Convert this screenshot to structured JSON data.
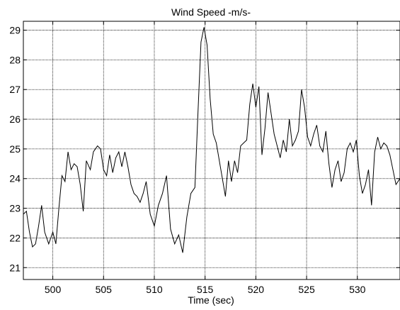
{
  "chart_data": {
    "type": "line",
    "title": "Wind Speed -m/s-",
    "xlabel": "Time (sec)",
    "ylabel": "",
    "xlim": [
      497.1,
      534.2
    ],
    "ylim": [
      20.6,
      29.3
    ],
    "xticks": [
      500,
      505,
      510,
      515,
      520,
      525,
      530
    ],
    "yticks": [
      21,
      22,
      23,
      24,
      25,
      26,
      27,
      28,
      29
    ],
    "grid": true,
    "legend": "none",
    "colors": {
      "line": "#000000",
      "grid": "#000000",
      "axes": "#000000",
      "background": "#ffffff"
    },
    "series": [
      {
        "x": [
          497.1,
          497.4,
          497.7,
          498.0,
          498.3,
          498.6,
          498.9,
          499.2,
          499.6,
          500.0,
          500.3,
          500.6,
          500.9,
          501.2,
          501.5,
          501.8,
          502.1,
          502.4,
          502.7,
          503.0,
          503.3,
          503.7,
          504.0,
          504.4,
          504.7,
          505.0,
          505.3,
          505.6,
          505.9,
          506.2,
          506.5,
          506.8,
          507.1,
          507.4,
          507.7,
          508.0,
          508.3,
          508.6,
          508.9,
          509.2,
          509.6,
          510.0,
          510.4,
          510.8,
          511.2,
          511.6,
          512.0,
          512.4,
          512.8,
          513.2,
          513.6,
          514.0,
          514.3,
          514.6,
          514.9,
          515.2,
          515.5,
          515.8,
          516.1,
          516.4,
          516.7,
          517.0,
          517.3,
          517.6,
          517.9,
          518.2,
          518.5,
          518.8,
          519.1,
          519.4,
          519.7,
          520.0,
          520.3,
          520.6,
          520.9,
          521.2,
          521.5,
          521.8,
          522.1,
          522.4,
          522.7,
          523.0,
          523.3,
          523.6,
          523.9,
          524.2,
          524.5,
          524.8,
          525.1,
          525.4,
          525.7,
          526.0,
          526.3,
          526.6,
          526.9,
          527.2,
          527.5,
          527.8,
          528.1,
          528.4,
          528.7,
          529.0,
          529.3,
          529.6,
          529.9,
          530.2,
          530.5,
          530.8,
          531.1,
          531.4,
          531.7,
          532.0,
          532.3,
          532.6,
          532.9,
          533.2,
          533.5,
          533.8,
          534.2
        ],
        "values": [
          22.8,
          22.9,
          22.2,
          21.7,
          21.8,
          22.4,
          23.1,
          22.2,
          21.8,
          22.2,
          21.8,
          23.0,
          24.1,
          23.9,
          24.9,
          24.3,
          24.5,
          24.4,
          23.8,
          22.9,
          24.6,
          24.3,
          24.9,
          25.1,
          25.0,
          24.3,
          24.1,
          24.8,
          24.2,
          24.7,
          24.9,
          24.4,
          24.9,
          24.4,
          23.8,
          23.5,
          23.4,
          23.2,
          23.5,
          23.9,
          22.8,
          22.4,
          23.1,
          23.5,
          24.1,
          22.3,
          21.8,
          22.1,
          21.5,
          22.7,
          23.5,
          23.7,
          26.2,
          28.6,
          29.1,
          28.5,
          26.7,
          25.5,
          25.2,
          24.6,
          24.0,
          23.4,
          24.6,
          23.9,
          24.6,
          24.2,
          25.1,
          25.2,
          25.3,
          26.5,
          27.2,
          26.4,
          27.1,
          24.8,
          25.7,
          26.9,
          26.2,
          25.5,
          25.1,
          24.7,
          25.3,
          24.9,
          26.0,
          25.1,
          25.3,
          25.6,
          27.0,
          26.4,
          25.4,
          25.1,
          25.5,
          25.8,
          25.1,
          24.9,
          25.6,
          24.5,
          23.7,
          24.3,
          24.6,
          23.9,
          24.2,
          25.0,
          25.2,
          24.9,
          25.3,
          24.1,
          23.5,
          23.8,
          24.3,
          23.1,
          24.9,
          25.4,
          25.0,
          25.2,
          25.1,
          24.8,
          24.3,
          23.8,
          24.0
        ]
      }
    ]
  }
}
